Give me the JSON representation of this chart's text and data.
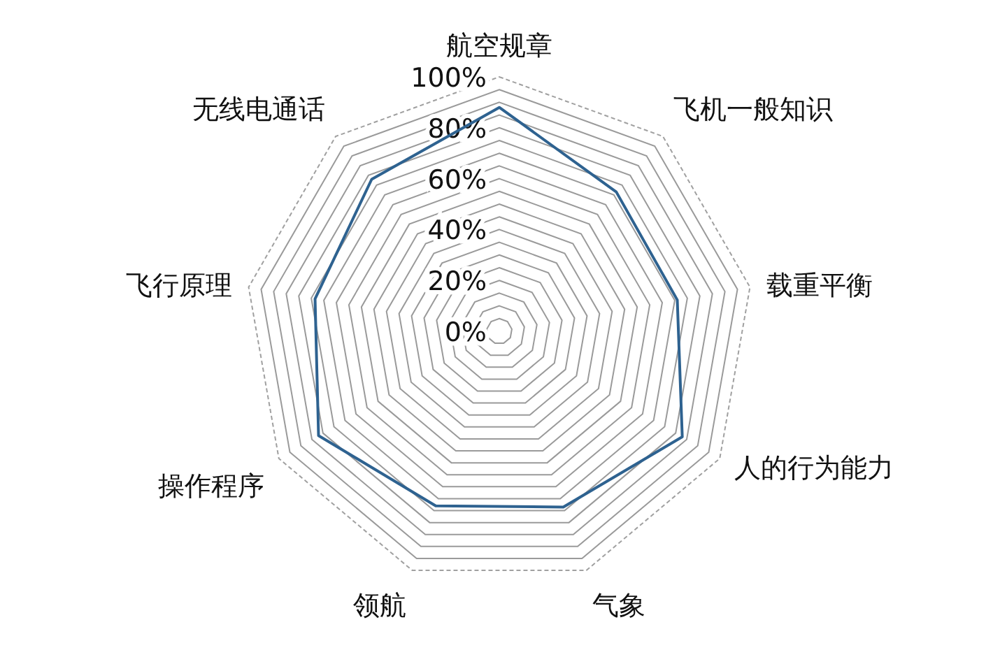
{
  "chart_data": {
    "type": "radar",
    "categories": [
      "航空规章",
      "飞机一般知识",
      "载重平衡",
      "人的行为能力",
      "气象",
      "领航",
      "操作程序",
      "飞行原理",
      "无线电通话"
    ],
    "series": [
      {
        "color": "#2e6290",
        "values": [
          88,
          71.5,
          71,
          83,
          73.5,
          73,
          82,
          73.5,
          78
        ]
      }
    ],
    "ylim": [
      0,
      100
    ],
    "yticks": [
      {
        "value": 0,
        "label": "0%"
      },
      {
        "value": 20,
        "label": "20%"
      },
      {
        "value": 40,
        "label": "40%"
      },
      {
        "value": 60,
        "label": "60%"
      },
      {
        "value": 80,
        "label": "80%"
      },
      {
        "value": 100,
        "label": "100%"
      }
    ],
    "grid": true,
    "marker": "none"
  }
}
